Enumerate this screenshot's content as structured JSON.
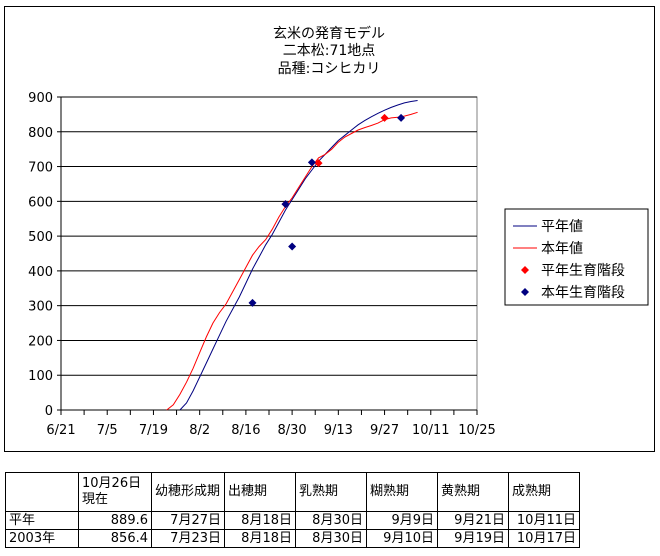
{
  "chart_data": {
    "type": "line",
    "title": [
      "玄米の発育モデル",
      "二本松:71地点",
      "品種:コシヒカリ"
    ],
    "x_ticks": [
      "6/21",
      "7/5",
      "7/19",
      "8/2",
      "8/16",
      "8/30",
      "9/13",
      "9/27",
      "10/11",
      "10/25"
    ],
    "ylim": [
      0,
      900
    ],
    "y_ticks": [
      "0",
      "100",
      "200",
      "300",
      "400",
      "500",
      "600",
      "700",
      "800",
      "900"
    ],
    "grid": "horizontal",
    "legend_position": "right",
    "series": [
      {
        "name": "平年値",
        "kind": "line",
        "color": "#000080",
        "points": [
          [
            36,
            0
          ],
          [
            38,
            20
          ],
          [
            40,
            55
          ],
          [
            42,
            95
          ],
          [
            44,
            135
          ],
          [
            46,
            175
          ],
          [
            48,
            215
          ],
          [
            50,
            255
          ],
          [
            52,
            290
          ],
          [
            54,
            325
          ],
          [
            56,
            365
          ],
          [
            58,
            405
          ],
          [
            60,
            440
          ],
          [
            62,
            475
          ],
          [
            64,
            505
          ],
          [
            66,
            540
          ],
          [
            68,
            575
          ],
          [
            70,
            605
          ],
          [
            72,
            635
          ],
          [
            74,
            665
          ],
          [
            76,
            690
          ],
          [
            78,
            715
          ],
          [
            80,
            735
          ],
          [
            82,
            755
          ],
          [
            84,
            775
          ],
          [
            86,
            790
          ],
          [
            88,
            805
          ],
          [
            90,
            820
          ],
          [
            92,
            832
          ],
          [
            94,
            843
          ],
          [
            96,
            853
          ],
          [
            98,
            862
          ],
          [
            100,
            870
          ],
          [
            102,
            877
          ],
          [
            104,
            883
          ],
          [
            106,
            887
          ],
          [
            108,
            890
          ]
        ]
      },
      {
        "name": "本年値",
        "kind": "line",
        "color": "#ff0000",
        "points": [
          [
            32,
            0
          ],
          [
            34,
            15
          ],
          [
            36,
            45
          ],
          [
            38,
            80
          ],
          [
            40,
            120
          ],
          [
            42,
            165
          ],
          [
            44,
            210
          ],
          [
            46,
            250
          ],
          [
            48,
            280
          ],
          [
            50,
            305
          ],
          [
            52,
            340
          ],
          [
            54,
            375
          ],
          [
            56,
            410
          ],
          [
            58,
            445
          ],
          [
            60,
            470
          ],
          [
            62,
            490
          ],
          [
            64,
            520
          ],
          [
            66,
            555
          ],
          [
            68,
            585
          ],
          [
            70,
            610
          ],
          [
            72,
            640
          ],
          [
            74,
            670
          ],
          [
            76,
            700
          ],
          [
            78,
            725
          ],
          [
            80,
            735
          ],
          [
            82,
            750
          ],
          [
            84,
            770
          ],
          [
            86,
            785
          ],
          [
            88,
            795
          ],
          [
            90,
            805
          ],
          [
            92,
            812
          ],
          [
            94,
            818
          ],
          [
            96,
            825
          ],
          [
            98,
            835
          ],
          [
            100,
            840
          ],
          [
            102,
            842
          ],
          [
            104,
            845
          ],
          [
            106,
            850
          ],
          [
            108,
            856
          ]
        ]
      },
      {
        "name": "平年生育階段",
        "kind": "marker",
        "color": "#ff0000",
        "points": [
          [
            68,
            592
          ],
          [
            78,
            710
          ],
          [
            98,
            840
          ]
        ]
      },
      {
        "name": "本年生育階段",
        "kind": "marker",
        "color": "#000080",
        "points": [
          [
            58,
            308
          ],
          [
            70,
            470
          ],
          [
            68,
            592
          ],
          [
            76,
            712
          ],
          [
            103,
            840
          ]
        ]
      }
    ]
  },
  "table": {
    "header": [
      "",
      "10月26日現在",
      "幼穂形成期",
      "出穂期",
      "乳熟期",
      "糊熟期",
      "黄熟期",
      "成熟期"
    ],
    "rows": [
      [
        "平年",
        "889.6",
        "7月27日",
        "8月18日",
        "8月30日",
        "9月9日",
        "9月21日",
        "10月11日"
      ],
      [
        "2003年",
        "856.4",
        "7月23日",
        "8月18日",
        "8月30日",
        "9月10日",
        "9月19日",
        "10月17日"
      ]
    ]
  }
}
